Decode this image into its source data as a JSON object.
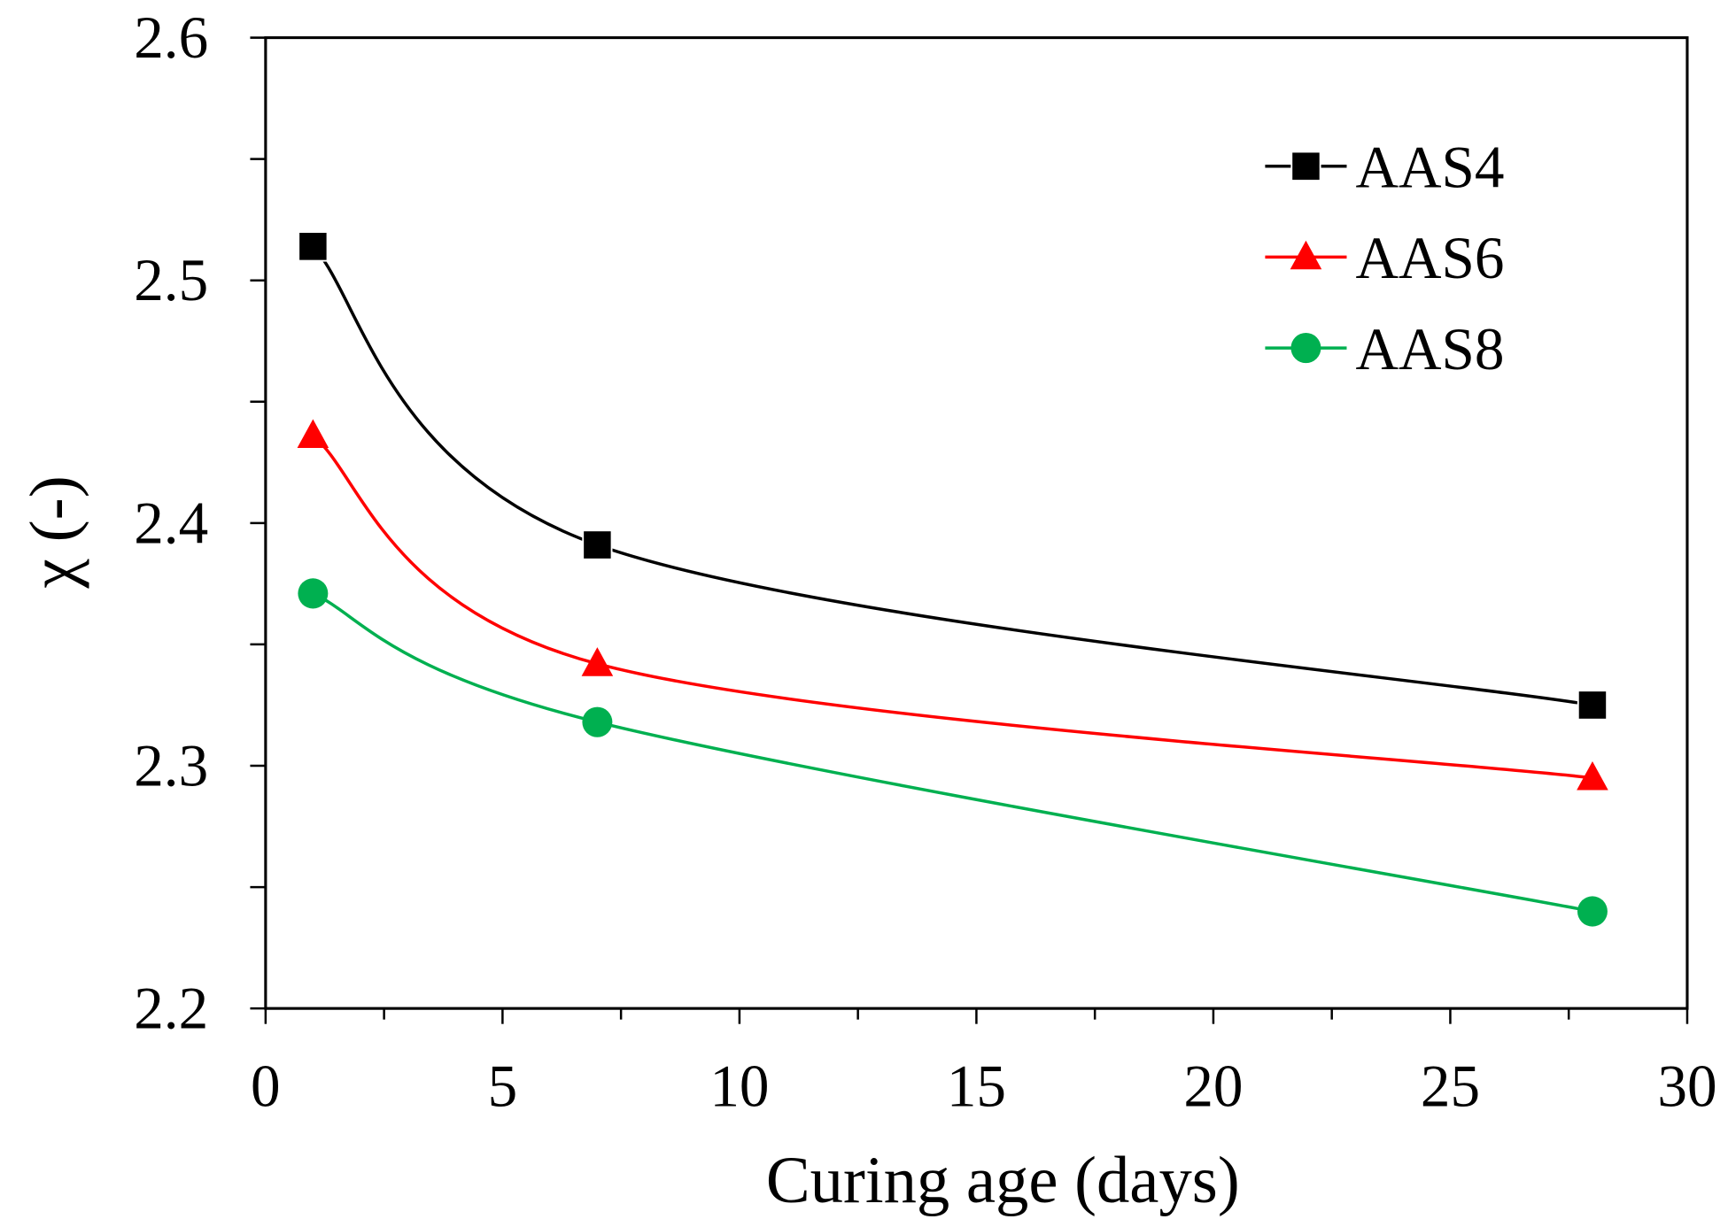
{
  "chart_data": {
    "type": "line",
    "title": "",
    "xlabel": "Curing age (days)",
    "ylabel": "χ (-)",
    "xlim": [
      0,
      30
    ],
    "ylim": [
      2.2,
      2.6
    ],
    "xticks": [
      "0",
      "5",
      "10",
      "15",
      "20",
      "25",
      "30"
    ],
    "yticks": [
      "2.2",
      "2.3",
      "2.4",
      "2.5",
      "2.6"
    ],
    "grid": false,
    "legend_position": "top-right",
    "x": [
      1,
      7,
      28
    ],
    "series": [
      {
        "name": "AAS4",
        "values": [
          2.514,
          2.391,
          2.325
        ],
        "color": "#000000",
        "marker": "square"
      },
      {
        "name": "AAS6",
        "values": [
          2.436,
          2.342,
          2.295
        ],
        "color": "#ff0000",
        "marker": "triangle"
      },
      {
        "name": "AAS8",
        "values": [
          2.371,
          2.318,
          2.24
        ],
        "color": "#00b050",
        "marker": "circle"
      }
    ]
  }
}
